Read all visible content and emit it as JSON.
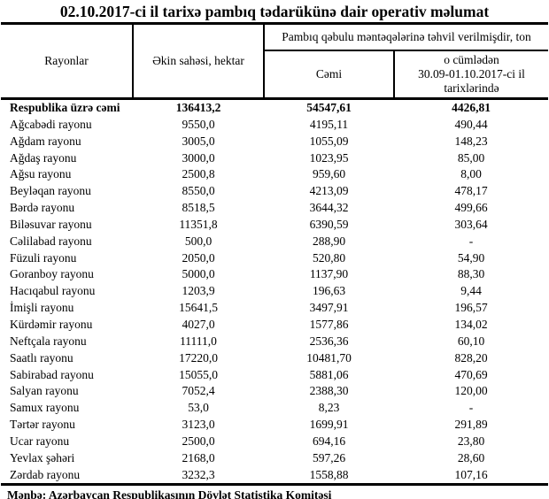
{
  "title": "02.10.2017-ci il tarixə pambıq tədarükünə dair operativ məlumat",
  "columns": {
    "rayonlar": "Rayonlar",
    "ekin_sahesi": "Əkin sahəsi, hektar",
    "tehvil_span": "Pambıq qəbulu məntəqələrinə təhvil verilmişdir, ton",
    "cemi": "Cəmi",
    "o_cumleden": "o cümlədən\n30.09-01.10.2017-ci il\ntarixlərində"
  },
  "rows": [
    {
      "label": "Respublika üzrə cəmi",
      "values": [
        "136413,2",
        "54547,61",
        "4426,81"
      ],
      "bold": true
    },
    {
      "label": "Ağcabədi rayonu",
      "values": [
        "9550,0",
        "4195,11",
        "490,44"
      ],
      "bold": false
    },
    {
      "label": "Ağdam rayonu",
      "values": [
        "3005,0",
        "1055,09",
        "148,23"
      ],
      "bold": false
    },
    {
      "label": "Ağdaş rayonu",
      "values": [
        "3000,0",
        "1023,95",
        "85,00"
      ],
      "bold": false
    },
    {
      "label": "Ağsu rayonu",
      "values": [
        "2500,8",
        "959,60",
        "8,00"
      ],
      "bold": false
    },
    {
      "label": "Beyləqan rayonu",
      "values": [
        "8550,0",
        "4213,09",
        "478,17"
      ],
      "bold": false
    },
    {
      "label": "Bərdə rayonu",
      "values": [
        "8518,5",
        "3644,32",
        "499,66"
      ],
      "bold": false
    },
    {
      "label": "Biləsuvar rayonu",
      "values": [
        "11351,8",
        "6390,59",
        "303,64"
      ],
      "bold": false
    },
    {
      "label": "Cəlilabad rayonu",
      "values": [
        "500,0",
        "288,90",
        "-"
      ],
      "bold": false
    },
    {
      "label": "Füzuli rayonu",
      "values": [
        "2050,0",
        "520,80",
        "54,90"
      ],
      "bold": false
    },
    {
      "label": "Goranboy rayonu",
      "values": [
        "5000,0",
        "1137,90",
        "88,30"
      ],
      "bold": false
    },
    {
      "label": "Hacıqabul rayonu",
      "values": [
        "1203,9",
        "196,63",
        "9,44"
      ],
      "bold": false
    },
    {
      "label": "İmişli rayonu",
      "values": [
        "15641,5",
        "3497,91",
        "196,57"
      ],
      "bold": false
    },
    {
      "label": "Kürdəmir rayonu",
      "values": [
        "4027,0",
        "1577,86",
        "134,02"
      ],
      "bold": false
    },
    {
      "label": "Neftçala rayonu",
      "values": [
        "11111,0",
        "2536,36",
        "60,10"
      ],
      "bold": false
    },
    {
      "label": "Saatlı rayonu",
      "values": [
        "17220,0",
        "10481,70",
        "828,20"
      ],
      "bold": false
    },
    {
      "label": "Sabirabad rayonu",
      "values": [
        "15055,0",
        "5881,06",
        "470,69"
      ],
      "bold": false
    },
    {
      "label": "Salyan rayonu",
      "values": [
        "7052,4",
        "2388,30",
        "120,00"
      ],
      "bold": false
    },
    {
      "label": "Samux rayonu",
      "values": [
        "53,0",
        "8,23",
        "-"
      ],
      "bold": false
    },
    {
      "label": "Tərtər rayonu",
      "values": [
        "3123,0",
        "1699,91",
        "291,89"
      ],
      "bold": false
    },
    {
      "label": "Ucar rayonu",
      "values": [
        "2500,0",
        "694,16",
        "23,80"
      ],
      "bold": false
    },
    {
      "label": "Yevlax şəhəri",
      "values": [
        "2168,0",
        "597,26",
        "28,60"
      ],
      "bold": false
    },
    {
      "label": "Zərdab rayonu",
      "values": [
        "3232,3",
        "1558,88",
        "107,16"
      ],
      "bold": false
    }
  ],
  "footer": "Mənbə: Azərbaycan Respublikasının Dövlət Statistika Komitəsi"
}
